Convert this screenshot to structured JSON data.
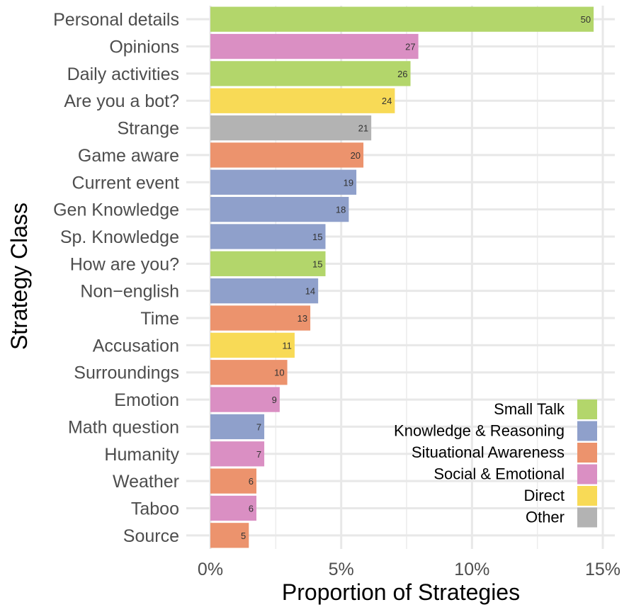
{
  "chart_data": {
    "type": "bar",
    "orientation": "horizontal",
    "xlabel": "Proportion of Strategies",
    "ylabel": "Strategy Class",
    "xlim": [
      0,
      0.153
    ],
    "xticks": [
      0,
      0.05,
      0.1,
      0.15
    ],
    "xtick_labels": [
      "0%",
      "5%",
      "10%",
      "15%"
    ],
    "grid": true,
    "legend_position": "bottom-right",
    "colors": {
      "Small Talk": "#b3d66b",
      "Knowledge & Reasoning": "#8fa0cb",
      "Situational Awareness": "#ec936d",
      "Social & Emotional": "#da8fc3",
      "Direct": "#f8da56",
      "Other": "#b3b3b3"
    },
    "legend": [
      "Small Talk",
      "Knowledge & Reasoning",
      "Situational Awareness",
      "Social & Emotional",
      "Direct",
      "Other"
    ],
    "categories": [
      {
        "name": "Personal details",
        "value": 0.1465,
        "count": "50",
        "group": "Small Talk"
      },
      {
        "name": "Opinions",
        "value": 0.0795,
        "count": "27",
        "group": "Social & Emotional"
      },
      {
        "name": "Daily activities",
        "value": 0.0765,
        "count": "26",
        "group": "Small Talk"
      },
      {
        "name": "Are you a bot?",
        "value": 0.0705,
        "count": "24",
        "group": "Direct"
      },
      {
        "name": "Strange",
        "value": 0.0615,
        "count": "21",
        "group": "Other"
      },
      {
        "name": "Game aware",
        "value": 0.0585,
        "count": "20",
        "group": "Situational Awareness"
      },
      {
        "name": "Current event",
        "value": 0.0558,
        "count": "19",
        "group": "Knowledge & Reasoning"
      },
      {
        "name": "Gen Knowledge",
        "value": 0.0529,
        "count": "18",
        "group": "Knowledge & Reasoning"
      },
      {
        "name": "Sp. Knowledge",
        "value": 0.044,
        "count": "15",
        "group": "Knowledge & Reasoning"
      },
      {
        "name": "How are you?",
        "value": 0.044,
        "count": "15",
        "group": "Small Talk"
      },
      {
        "name": "Non−english",
        "value": 0.0412,
        "count": "14",
        "group": "Knowledge & Reasoning"
      },
      {
        "name": "Time",
        "value": 0.0382,
        "count": "13",
        "group": "Situational Awareness"
      },
      {
        "name": "Accusation",
        "value": 0.0322,
        "count": "11",
        "group": "Direct"
      },
      {
        "name": "Surroundings",
        "value": 0.0294,
        "count": "10",
        "group": "Situational Awareness"
      },
      {
        "name": "Emotion",
        "value": 0.0265,
        "count": "9",
        "group": "Social & Emotional"
      },
      {
        "name": "Math question",
        "value": 0.0206,
        "count": "7",
        "group": "Knowledge & Reasoning"
      },
      {
        "name": "Humanity",
        "value": 0.0206,
        "count": "7",
        "group": "Social & Emotional"
      },
      {
        "name": "Weather",
        "value": 0.0176,
        "count": "6",
        "group": "Situational Awareness"
      },
      {
        "name": "Taboo",
        "value": 0.0176,
        "count": "6",
        "group": "Social & Emotional"
      },
      {
        "name": "Source",
        "value": 0.0147,
        "count": "5",
        "group": "Situational Awareness"
      }
    ]
  }
}
